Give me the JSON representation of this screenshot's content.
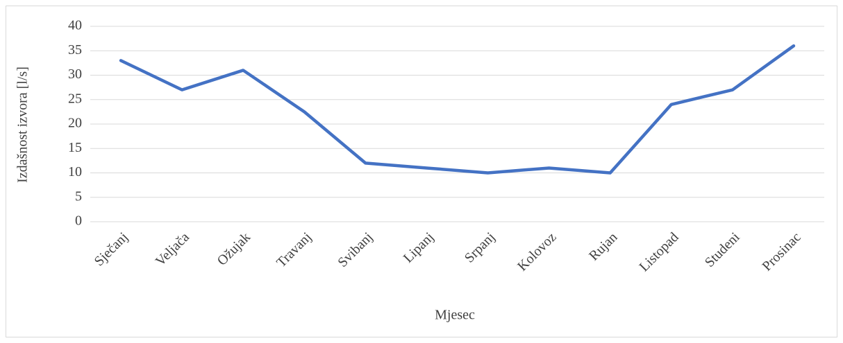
{
  "chart_data": {
    "type": "line",
    "x_label": "Mjesec",
    "y_label": "Izdašnost izvora [l/s]",
    "categories": [
      "Sječanj",
      "Veljača",
      "Ožujak",
      "Travanj",
      "Svibanj",
      "Lipanj",
      "Srpanj",
      "Kolovoz",
      "Rujan",
      "Listopad",
      "Studeni",
      "Prosinac"
    ],
    "values": [
      33,
      27,
      31,
      22.5,
      12,
      11,
      10,
      11,
      10,
      24,
      27,
      36
    ],
    "color": "#4472c4",
    "ylim": [
      0,
      40
    ],
    "yticks": [
      0,
      5,
      10,
      15,
      20,
      25,
      30,
      35,
      40
    ],
    "grid": true
  }
}
